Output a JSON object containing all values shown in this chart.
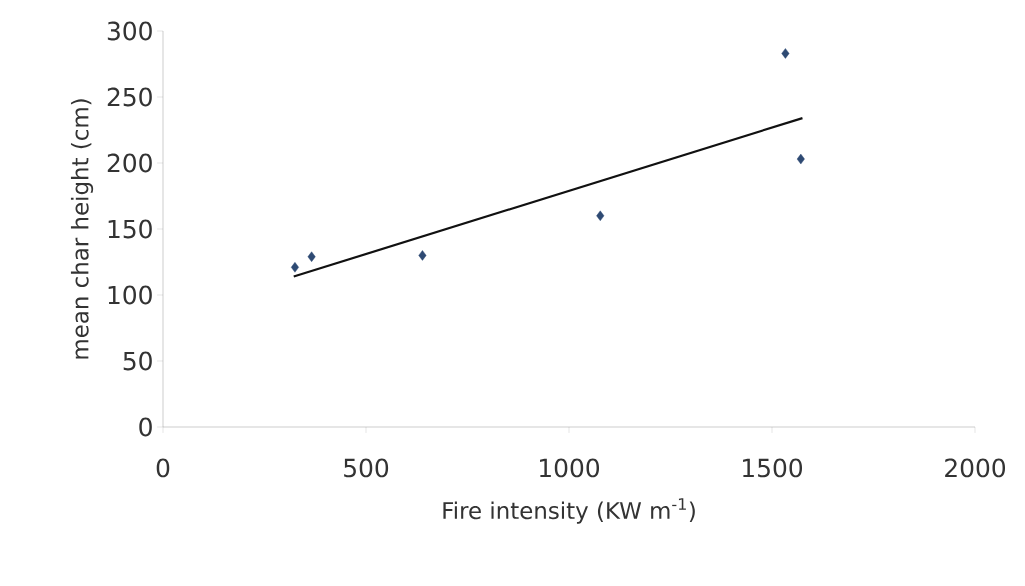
{
  "chart_data": {
    "type": "scatter",
    "xlabel": "Fire intensity (KW m$^{-1}$)",
    "ylabel": "mean char height (cm)",
    "xlim": [
      0,
      2000
    ],
    "xticks": [
      0,
      500,
      1000,
      1500,
      2000
    ],
    "ylim": [
      0,
      300
    ],
    "yticks": [
      0,
      50,
      100,
      150,
      200,
      250,
      300
    ],
    "marker": "diamond",
    "series": [
      {
        "color": "#2e4a73",
        "x": [
          325,
          366,
          639,
          1077,
          1533,
          1571
        ],
        "values": [
          121,
          129,
          130,
          160,
          283,
          203
        ]
      },
      {
        "type": "line",
        "color": "#111111",
        "x": [
          322,
          1575
        ],
        "values": [
          114,
          234
        ],
        "marker": "none"
      }
    ]
  }
}
